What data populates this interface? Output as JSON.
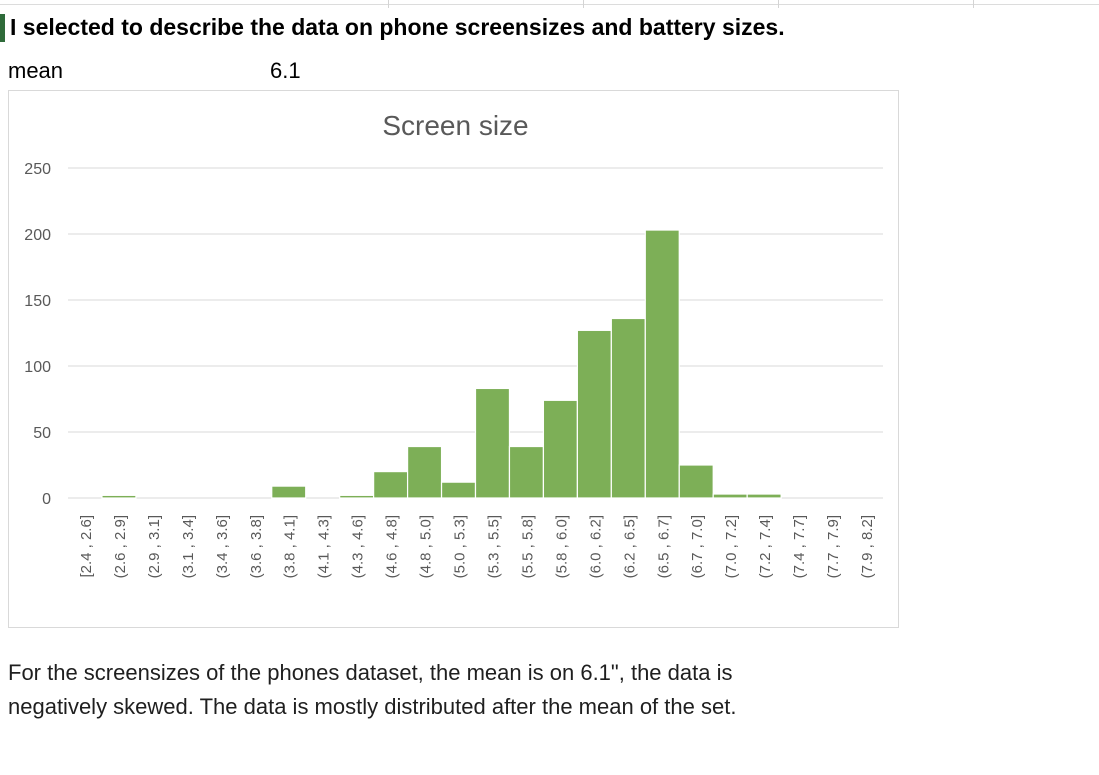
{
  "heading": "I selected to describe the data on phone screensizes and battery sizes.",
  "summary": {
    "label": "mean",
    "value": "6.1"
  },
  "chart_data": {
    "type": "bar",
    "title": "Screen size",
    "xlabel": "",
    "ylabel": "",
    "ylim": [
      0,
      250
    ],
    "yticks": [
      0,
      50,
      100,
      150,
      200,
      250
    ],
    "grid": true,
    "legend": "none",
    "bar_color": "#7daf57",
    "categories": [
      "[2.4 , 2.6]",
      "(2.6 , 2.9]",
      "(2.9 , 3.1]",
      "(3.1 , 3.4]",
      "(3.4 , 3.6]",
      "(3.6 , 3.8]",
      "(3.8 , 4.1]",
      "(4.1 , 4.3]",
      "(4.3 , 4.6]",
      "(4.6 , 4.8]",
      "(4.8 , 5.0]",
      "(5.0 , 5.3]",
      "(5.3 , 5.5]",
      "(5.5 , 5.8]",
      "(5.8 , 6.0]",
      "(6.0 , 6.2]",
      "(6.2 , 6.5]",
      "(6.5 , 6.7]",
      "(6.7 , 7.0]",
      "(7.0 , 7.2]",
      "(7.2 , 7.4]",
      "(7.4 , 7.7]",
      "(7.7 , 7.9]",
      "(7.9 , 8.2]"
    ],
    "values": [
      0,
      2,
      0,
      0,
      0,
      0,
      9,
      0,
      2,
      20,
      39,
      12,
      83,
      39,
      74,
      127,
      136,
      203,
      25,
      3,
      3,
      0,
      0,
      0
    ]
  },
  "paragraph": {
    "line1": "For the screensizes of the phones dataset, the mean is on 6.1\", the data is",
    "line2": "negatively skewed. The data is mostly distributed after the mean of the set."
  }
}
